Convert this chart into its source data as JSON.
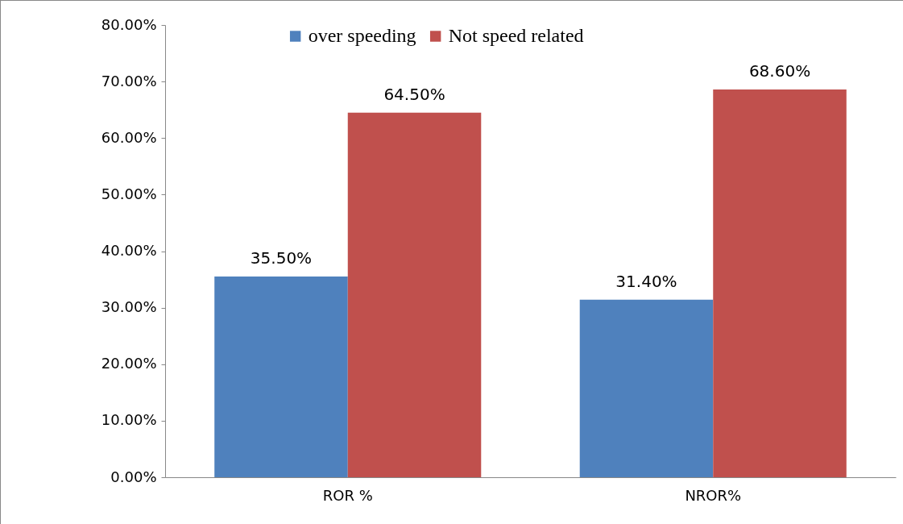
{
  "chart_data": {
    "type": "bar",
    "categories": [
      "ROR %",
      "NROR%"
    ],
    "series": [
      {
        "name": "over speeding",
        "color": "#4f81bd",
        "values": [
          35.5,
          31.4
        ],
        "value_labels": [
          "35.50%",
          "31.40%"
        ]
      },
      {
        "name": "Not speed related",
        "color": "#c0504d",
        "values": [
          64.5,
          68.6
        ],
        "value_labels": [
          "64.50%",
          "68.60%"
        ]
      }
    ],
    "ylim": [
      0,
      80
    ],
    "yticks": [
      {
        "value": 0,
        "label": "0.00%"
      },
      {
        "value": 10,
        "label": "10.00%"
      },
      {
        "value": 20,
        "label": "20.00%"
      },
      {
        "value": 30,
        "label": "30.00%"
      },
      {
        "value": 40,
        "label": "40.00%"
      },
      {
        "value": 50,
        "label": "50.00%"
      },
      {
        "value": 60,
        "label": "60.00%"
      },
      {
        "value": 70,
        "label": "70.00%"
      },
      {
        "value": 80,
        "label": "80.00%"
      }
    ],
    "grid": false,
    "legend": "top"
  }
}
